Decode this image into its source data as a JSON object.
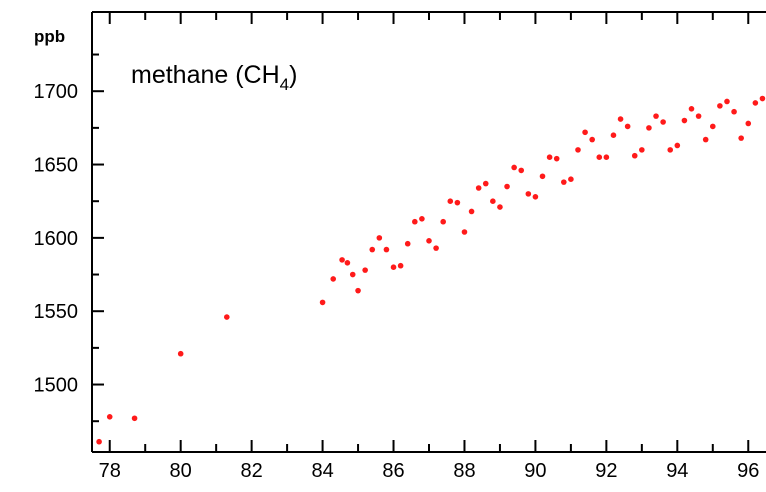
{
  "chart_data": {
    "type": "scatter",
    "title": "methane (CH",
    "title_subscript": "4",
    "title_suffix": ")",
    "ylabel": "ppb",
    "xlabel": "",
    "xlim": [
      77.5,
      96.5
    ],
    "ylim": [
      1454,
      1754
    ],
    "x_ticks": [
      78,
      80,
      82,
      84,
      86,
      88,
      90,
      92,
      94,
      96
    ],
    "x_tick_labels": [
      "78",
      "80",
      "82",
      "84",
      "86",
      "88",
      "90",
      "92",
      "94",
      "96"
    ],
    "y_ticks": [
      1500,
      1550,
      1600,
      1650,
      1700
    ],
    "y_tick_labels": [
      "1500",
      "1550",
      "1600",
      "1650",
      "1700"
    ],
    "grid": false,
    "legend": "none",
    "marker_color": "#ff1a1a",
    "series": [
      {
        "x": [
          77.7,
          78.0,
          78.7,
          80.0,
          81.3,
          84.0,
          84.3,
          84.55,
          84.7,
          84.85,
          85.0,
          85.2,
          85.4,
          85.6,
          85.8,
          86.0,
          86.2,
          86.4,
          86.6,
          86.8,
          87.0,
          87.2,
          87.4,
          87.6,
          87.8,
          88.0,
          88.2,
          88.4,
          88.6,
          88.8,
          89.0,
          89.2,
          89.4,
          89.6,
          89.8,
          90.0,
          90.2,
          90.4,
          90.6,
          90.8,
          91.0,
          91.2,
          91.4,
          91.6,
          91.8,
          92.0,
          92.2,
          92.4,
          92.6,
          92.8,
          93.0,
          93.2,
          93.4,
          93.6,
          93.8,
          94.0,
          94.2,
          94.4,
          94.6,
          94.8,
          95.0,
          95.2,
          95.4,
          95.6,
          95.8,
          96.0,
          96.2,
          96.4
        ],
        "y": [
          1461,
          1478,
          1477,
          1521,
          1546,
          1556,
          1572,
          1585,
          1583,
          1575,
          1564,
          1578,
          1592,
          1600,
          1592,
          1580,
          1581,
          1596,
          1611,
          1613,
          1598,
          1593,
          1611,
          1625,
          1624,
          1604,
          1618,
          1634,
          1637,
          1625,
          1621,
          1635,
          1648,
          1646,
          1630,
          1628,
          1642,
          1655,
          1654,
          1638,
          1640,
          1660,
          1672,
          1667,
          1655,
          1655,
          1670,
          1681,
          1676,
          1656,
          1660,
          1675,
          1683,
          1679,
          1660,
          1663,
          1680,
          1688,
          1683,
          1667,
          1676,
          1690,
          1693,
          1686,
          1668,
          1678,
          1692,
          1695
        ]
      }
    ]
  }
}
